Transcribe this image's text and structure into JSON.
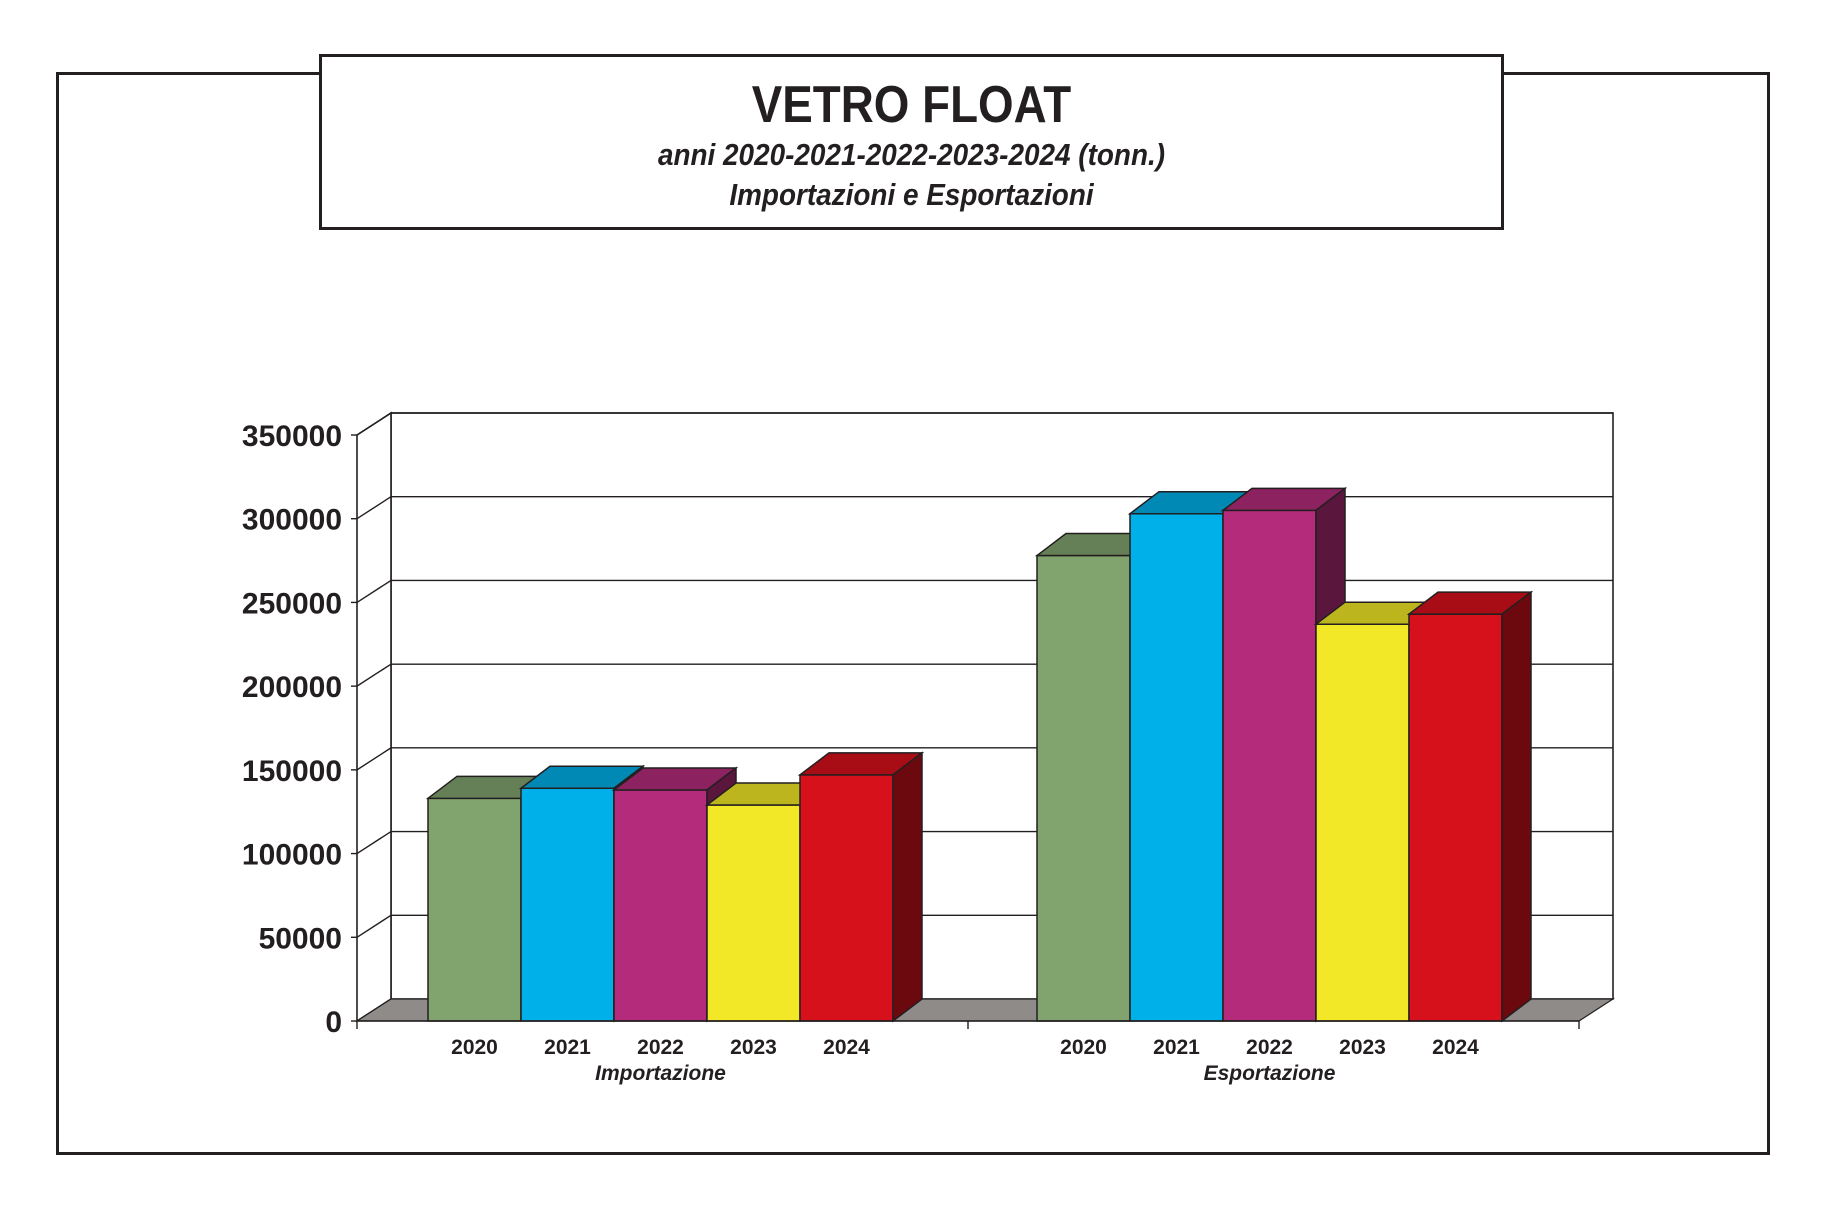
{
  "header": {
    "title": "VETRO FLOAT",
    "subtitle_1": "anni 2020-2021-2022-2023-2024 (tonn.)",
    "subtitle_2": "Importazioni e Esportazioni"
  },
  "colors": {
    "2020": "#81a46f",
    "2021": "#00b0e8",
    "2022": "#b52b7b",
    "2023": "#f2e827",
    "2024": "#d7111b",
    "floor": "#8e8b89",
    "grid": "#231f20"
  },
  "chart_data": {
    "type": "bar",
    "title": "VETRO FLOAT",
    "subtitle": "anni 2020-2021-2022-2023-2024 (tonn.)",
    "groups": [
      "Importazione",
      "Esportazione"
    ],
    "categories": [
      "2020",
      "2021",
      "2022",
      "2023",
      "2024"
    ],
    "series": [
      {
        "name": "Importazione",
        "values": [
          133000,
          139000,
          138000,
          129000,
          147000
        ]
      },
      {
        "name": "Esportazione",
        "values": [
          278000,
          303000,
          305000,
          237000,
          243000
        ]
      }
    ],
    "ylim": [
      0,
      350000
    ],
    "yticks": [
      "350000",
      "300000",
      "250000",
      "200000",
      "150000",
      "100000",
      "50000",
      "0"
    ],
    "grid": true,
    "three_d": true,
    "legend": "none"
  }
}
